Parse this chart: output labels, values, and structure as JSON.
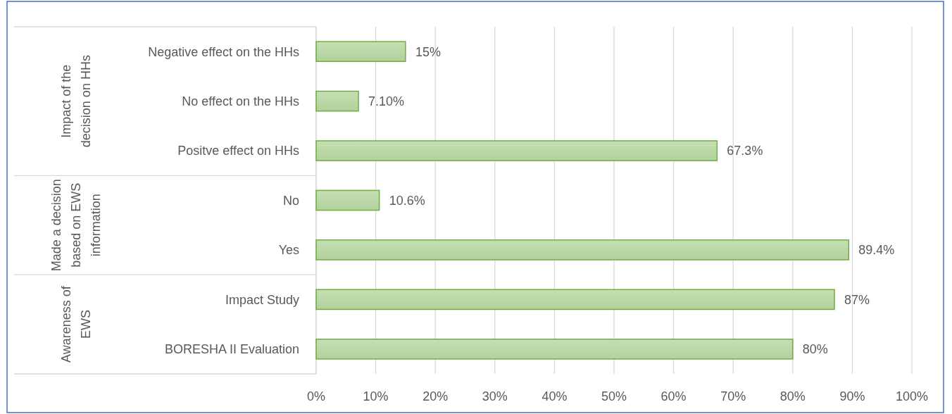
{
  "chart_data": {
    "type": "bar",
    "orientation": "horizontal",
    "categories": [
      "Negative effect on the HHs",
      "No effect on the HHs",
      "Positve effect on HHs",
      "No",
      "Yes",
      "Impact Study",
      "BORESHA II Evaluation"
    ],
    "values": [
      15,
      7.1,
      67.3,
      10.6,
      89.4,
      87,
      80
    ],
    "value_labels": [
      "15%",
      "7.10%",
      "67.3%",
      "10.6%",
      "89.4%",
      "87%",
      "80%"
    ],
    "color": "#70ad47",
    "xlim": [
      0,
      100
    ],
    "xticks": [
      {
        "value": 0,
        "label": "0%"
      },
      {
        "value": 10,
        "label": "10%"
      },
      {
        "value": 20,
        "label": "20%"
      },
      {
        "value": 30,
        "label": "30%"
      },
      {
        "value": 40,
        "label": "40%"
      },
      {
        "value": 50,
        "label": "50%"
      },
      {
        "value": 60,
        "label": "60%"
      },
      {
        "value": 70,
        "label": "70%"
      },
      {
        "value": 80,
        "label": "80%"
      },
      {
        "value": 90,
        "label": "90%"
      },
      {
        "value": 100,
        "label": "100%"
      }
    ],
    "grid": "x",
    "annotations": [
      "Impact of the decision on HHs",
      "Made a decision based on EWS information",
      "Awareness of EWS"
    ]
  }
}
